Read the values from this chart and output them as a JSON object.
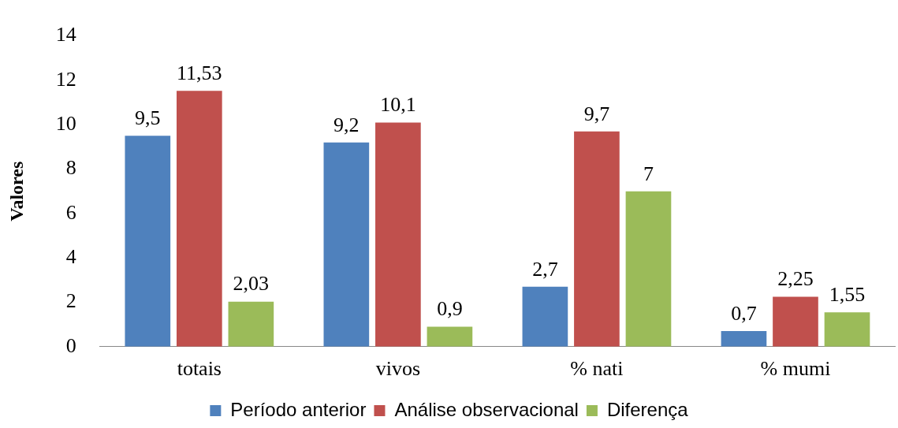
{
  "chart_data": {
    "type": "bar",
    "ylabel": "Valores",
    "categories": [
      "totais",
      "vivos",
      "% nati",
      "% mumi"
    ],
    "series": [
      {
        "name": "Período anterior",
        "color": "#4f81bd",
        "values": [
          9.5,
          9.2,
          2.7,
          0.7
        ],
        "value_labels": [
          "9,5",
          "9,2",
          "2,7",
          "0,7"
        ]
      },
      {
        "name": "Análise observacional",
        "color": "#c0504d",
        "values": [
          11.53,
          10.1,
          9.7,
          2.25
        ],
        "value_labels": [
          "11,53",
          "10,1",
          "9,7",
          "2,25"
        ]
      },
      {
        "name": "Diferença",
        "color": "#9bbb59",
        "values": [
          2.03,
          0.9,
          7,
          1.55
        ],
        "value_labels": [
          "2,03",
          "0,9",
          "7",
          "1,55"
        ]
      }
    ],
    "ylim": [
      0,
      14
    ],
    "yticks": [
      0,
      2,
      4,
      6,
      8,
      10,
      12,
      14
    ],
    "grid": false,
    "legend": "bottom"
  }
}
